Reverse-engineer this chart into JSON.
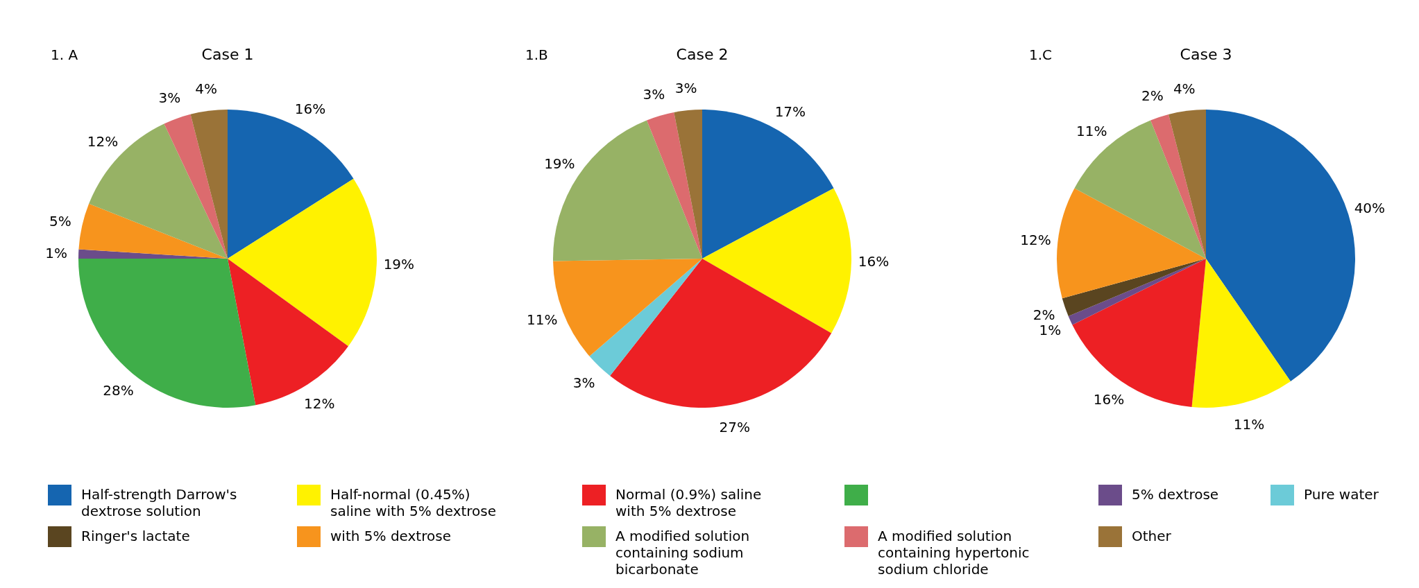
{
  "chart_data": [
    {
      "type": "pie",
      "title": "Case 1",
      "annotations": [
        "1. A"
      ],
      "legend": "bottom",
      "categories": [
        "Half-strength Darrow's dextrose solution",
        "Half-normal (0.45%) saline with 5% dextrose",
        "Normal (0.9%) saline with 5% dextrose",
        null,
        "5% dextrose",
        "Pure water",
        "Ringer's lactate",
        "with 5% dextrose",
        "A modified solution containing sodium bicarbonate",
        "A modified solution containing hypertonic sodium chloride",
        "Other"
      ],
      "values": [
        16,
        19,
        12,
        28,
        1,
        null,
        null,
        5,
        12,
        3,
        4
      ],
      "value_labels": [
        "16%",
        "19%",
        "12%",
        "28%",
        "1%",
        null,
        null,
        "5%",
        "12%",
        "3%",
        "4%"
      ],
      "colors": [
        "#1565b0",
        "#fff200",
        "#ed2024",
        "#3fae49",
        "#6b4c8a",
        "#6ccbd8",
        "#5a4520",
        "#f7941d",
        "#97b265",
        "#dc6b6e",
        "#9a7338"
      ]
    },
    {
      "type": "pie",
      "title": "Case 2",
      "annotations": [
        "1.B"
      ],
      "values": [
        17,
        16,
        27,
        3,
        11,
        19,
        3,
        3
      ],
      "value_labels": [
        "17%",
        "16%",
        "27%",
        "3%",
        "11%",
        "19%",
        "3%",
        "3%"
      ],
      "colors": [
        "#1565b0",
        "#fff200",
        "#ed2024",
        "#6ccbd8",
        "#f7941d",
        "#97b265",
        "#dc6b6e",
        "#9a7338"
      ]
    },
    {
      "type": "pie",
      "title": "Case 3",
      "annotations": [
        "1.C"
      ],
      "values": [
        40,
        11,
        16,
        1,
        2,
        12,
        11,
        2,
        4
      ],
      "value_labels": [
        "40%",
        "11%",
        "16%",
        "1%",
        "2%",
        "12%",
        "11%",
        "2%",
        "4%"
      ],
      "colors": [
        "#1565b0",
        "#fff200",
        "#ed2024",
        "#6b4c8a",
        "#5a4520",
        "#f7941d",
        "#97b265",
        "#dc6b6e",
        "#9a7338"
      ]
    }
  ]
}
